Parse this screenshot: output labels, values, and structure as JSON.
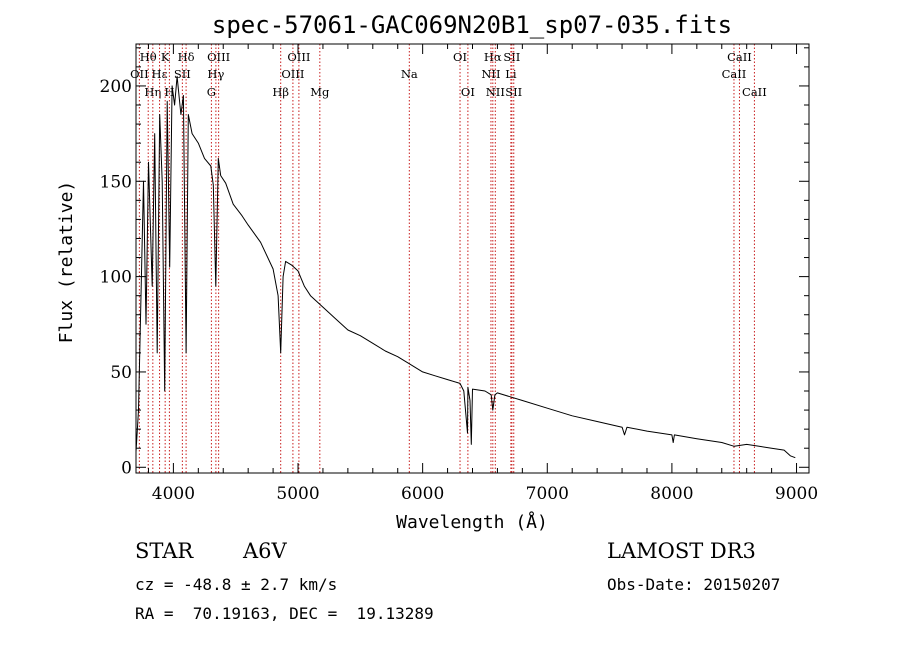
{
  "chart_data": {
    "type": "line",
    "title": "spec-57061-GAC069N20B1_sp07-035.fits",
    "xlabel": "Wavelength (Å)",
    "ylabel": "Flux (relative)",
    "xlim": [
      3700,
      9100
    ],
    "ylim": [
      -3,
      222
    ],
    "xticks": [
      4000,
      5000,
      6000,
      7000,
      8000,
      9000
    ],
    "xtick_labels": [
      "4000",
      "5000",
      "6000",
      "7000",
      "8000",
      "9000"
    ],
    "yticks": [
      0,
      50,
      100,
      150,
      200
    ],
    "ytick_labels": [
      "0",
      "50",
      "100",
      "150",
      "200"
    ],
    "spectrum": {
      "name": "flux",
      "x": [
        3700,
        3720,
        3740,
        3760,
        3780,
        3800,
        3830,
        3850,
        3870,
        3890,
        3910,
        3930,
        3950,
        3970,
        3990,
        4010,
        4030,
        4060,
        4080,
        4102,
        4120,
        4150,
        4200,
        4250,
        4300,
        4320,
        4340,
        4360,
        4380,
        4420,
        4480,
        4550,
        4600,
        4700,
        4800,
        4840,
        4861,
        4880,
        4900,
        4950,
        5000,
        5050,
        5100,
        5200,
        5300,
        5400,
        5500,
        5600,
        5700,
        5800,
        5900,
        6000,
        6100,
        6200,
        6300,
        6330,
        6360,
        6363,
        6380,
        6390,
        6400,
        6500,
        6550,
        6563,
        6580,
        6600,
        6700,
        6800,
        7000,
        7200,
        7400,
        7600,
        7620,
        7640,
        7800,
        8000,
        8010,
        8020,
        8200,
        8400,
        8500,
        8600,
        8700,
        8800,
        8900,
        8950,
        8990
      ],
      "values": [
        8,
        30,
        90,
        150,
        75,
        160,
        95,
        175,
        60,
        185,
        150,
        40,
        192,
        105,
        200,
        190,
        205,
        185,
        195,
        60,
        185,
        175,
        170,
        162,
        158,
        148,
        95,
        162,
        153,
        149,
        138,
        132,
        127,
        118,
        104,
        90,
        60,
        100,
        108,
        106,
        103,
        95,
        90,
        84,
        78,
        72,
        69,
        65,
        61,
        58,
        54,
        50,
        48,
        46,
        44,
        40,
        18,
        42,
        35,
        12,
        41,
        40,
        38,
        30,
        38,
        39,
        37,
        35,
        31,
        27,
        24,
        21,
        17,
        21,
        19,
        17,
        13,
        17,
        15,
        13,
        11,
        12,
        11,
        10,
        9,
        6,
        5
      ]
    },
    "spectral_lines": [
      {
        "label": "Hθ",
        "x": 3798,
        "row": 0
      },
      {
        "label": "OII",
        "x": 3727,
        "row": 1
      },
      {
        "label": "Hη",
        "x": 3835,
        "row": 2
      },
      {
        "label": "Hε",
        "x": 3889,
        "row": 1
      },
      {
        "label": "K",
        "x": 3934,
        "row": 0
      },
      {
        "label": "H",
        "x": 3968,
        "row": 2
      },
      {
        "label": "Hδ",
        "x": 4102,
        "row": 0
      },
      {
        "label": "SII",
        "x": 4072,
        "row": 1
      },
      {
        "label": "OIII",
        "x": 4363,
        "row": 0
      },
      {
        "label": "Hγ",
        "x": 4341,
        "row": 1
      },
      {
        "label": "G",
        "x": 4305,
        "row": 2
      },
      {
        "label": "Hβ",
        "x": 4861,
        "row": 2
      },
      {
        "label": "OIII",
        "x": 5007,
        "row": 0
      },
      {
        "label": "OIII",
        "x": 4959,
        "row": 1
      },
      {
        "label": "Mg",
        "x": 5175,
        "row": 2
      },
      {
        "label": "Na",
        "x": 5893,
        "row": 1
      },
      {
        "label": "OI",
        "x": 6300,
        "row": 0
      },
      {
        "label": "OI",
        "x": 6363,
        "row": 2
      },
      {
        "label": "Hα",
        "x": 6563,
        "row": 0
      },
      {
        "label": "SII",
        "x": 6716,
        "row": 0
      },
      {
        "label": "NII",
        "x": 6548,
        "row": 1
      },
      {
        "label": "Li",
        "x": 6708,
        "row": 1
      },
      {
        "label": "NII",
        "x": 6583,
        "row": 2
      },
      {
        "label": "SII",
        "x": 6731,
        "row": 2
      },
      {
        "label": "CaII",
        "x": 8542,
        "row": 0
      },
      {
        "label": "CaII",
        "x": 8498,
        "row": 1
      },
      {
        "label": "CaII",
        "x": 8662,
        "row": 2
      }
    ]
  },
  "info": {
    "object_class": "STAR",
    "subclass": "A6V",
    "survey": "LAMOST DR3",
    "redshift": "cz = -48.8 ± 2.7 km/s",
    "obs_date": "Obs-Date: 20150207",
    "coords": "RA =  70.19163, DEC =  19.13289"
  }
}
